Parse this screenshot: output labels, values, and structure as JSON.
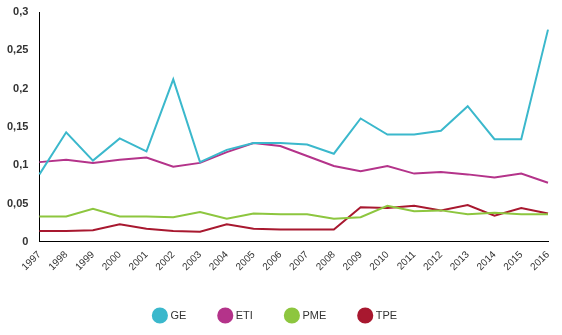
{
  "chart_data": {
    "type": "line",
    "categories": [
      "1997",
      "1998",
      "1999",
      "2000",
      "2001",
      "2002",
      "2003",
      "2004",
      "2005",
      "2006",
      "2007",
      "2008",
      "2009",
      "2010",
      "2011",
      "2012",
      "2013",
      "2014",
      "2015",
      "2016"
    ],
    "series": [
      {
        "name": "GE",
        "color": "#3bb8cc",
        "values": [
          0.088,
          0.143,
          0.106,
          0.135,
          0.118,
          0.212,
          0.104,
          0.12,
          0.129,
          0.129,
          0.127,
          0.115,
          0.161,
          0.14,
          0.14,
          0.145,
          0.177,
          0.134,
          0.134,
          0.277
        ]
      },
      {
        "name": "ETI",
        "color": "#b4338a",
        "values": [
          0.104,
          0.107,
          0.103,
          0.107,
          0.11,
          0.098,
          0.103,
          0.117,
          0.129,
          0.125,
          0.112,
          0.099,
          0.092,
          0.099,
          0.089,
          0.091,
          0.088,
          0.084,
          0.089,
          0.077
        ]
      },
      {
        "name": "PME",
        "color": "#8dc63f",
        "values": [
          0.033,
          0.033,
          0.043,
          0.033,
          0.033,
          0.032,
          0.039,
          0.03,
          0.037,
          0.036,
          0.036,
          0.03,
          0.032,
          0.047,
          0.04,
          0.041,
          0.036,
          0.038,
          0.036,
          0.036
        ]
      },
      {
        "name": "TPE",
        "color": "#a8182f",
        "values": [
          0.014,
          0.014,
          0.015,
          0.023,
          0.017,
          0.014,
          0.013,
          0.023,
          0.017,
          0.016,
          0.016,
          0.016,
          0.045,
          0.044,
          0.047,
          0.041,
          0.048,
          0.034,
          0.044,
          0.037
        ]
      }
    ],
    "ylim": [
      0,
      0.3
    ],
    "yticks": [
      {
        "value": 0,
        "label": "0"
      },
      {
        "value": 0.05,
        "label": "0,05"
      },
      {
        "value": 0.1,
        "label": "0,1"
      },
      {
        "value": 0.15,
        "label": "0,15"
      },
      {
        "value": 0.2,
        "label": "0,2"
      },
      {
        "value": 0.25,
        "label": "0,25"
      },
      {
        "value": 0.3,
        "label": "0,3"
      }
    ],
    "grid": false,
    "legend": "bottom"
  }
}
